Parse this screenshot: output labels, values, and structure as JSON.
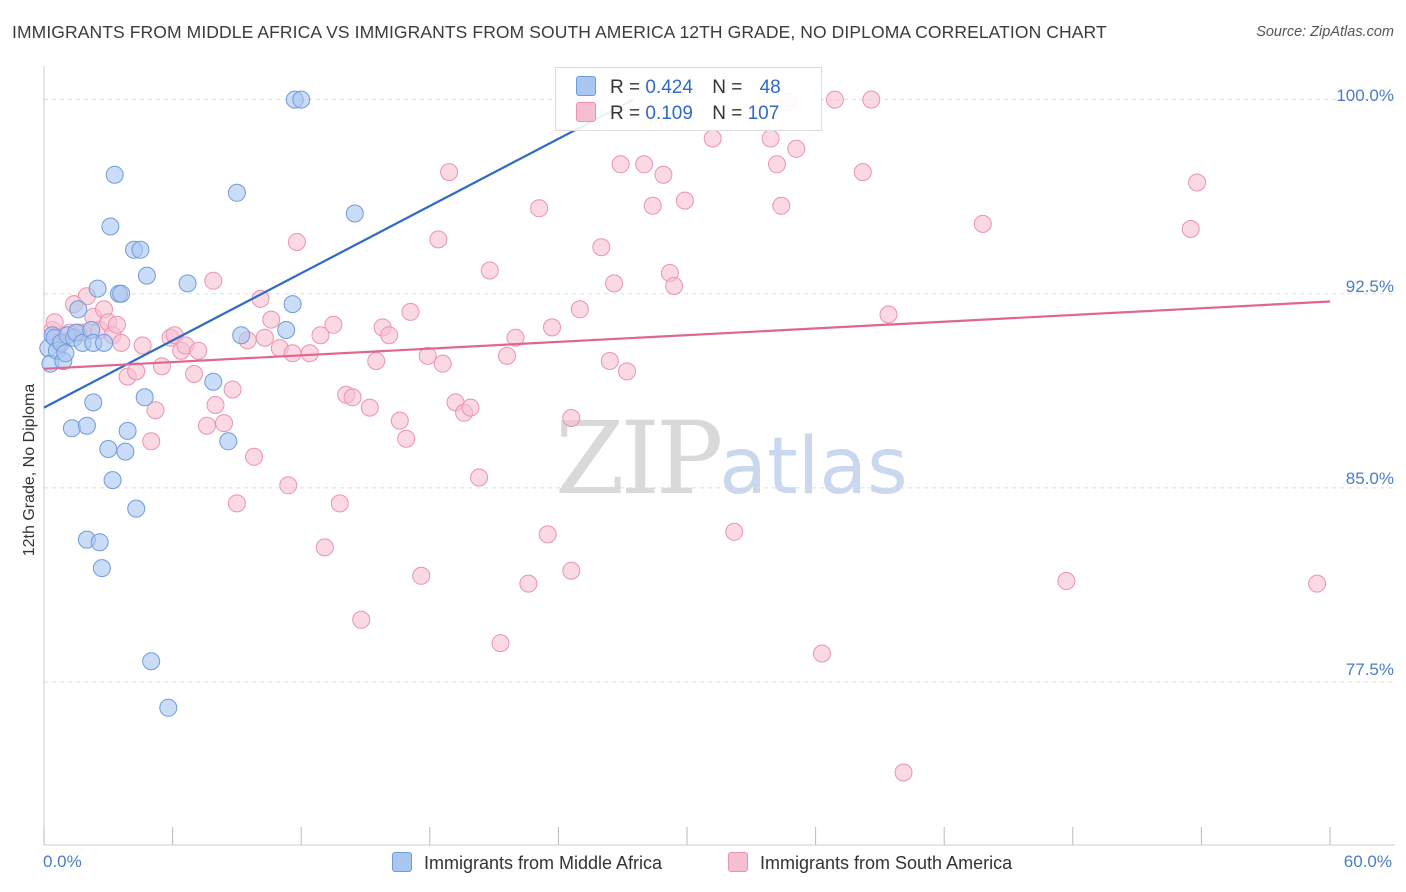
{
  "title": "IMMIGRANTS FROM MIDDLE AFRICA VS IMMIGRANTS FROM SOUTH AMERICA 12TH GRADE, NO DIPLOMA CORRELATION CHART",
  "source": "Source: ZipAtlas.com",
  "watermark": {
    "zip": "ZIP",
    "atlas": "atlas"
  },
  "legend": {
    "rows": [
      {
        "r_label": "R =",
        "r_value": "0.424",
        "n_label": "N =",
        "n_value": "48"
      },
      {
        "r_label": "R =",
        "r_value": "0.109",
        "n_label": "N =",
        "n_value": "107"
      }
    ]
  },
  "bottom_legend": [
    "Immigrants from Middle Africa",
    "Immigrants from South America"
  ],
  "colors": {
    "blue_fill": "#a9c6f0",
    "blue_stroke": "#6f9bdc",
    "blue_line": "#2f6ac6",
    "pink_fill": "#f6bfd1",
    "pink_stroke": "#eb93b1",
    "pink_line": "#e06593",
    "tick_text": "#4a7cc9",
    "grid": "#dddddd"
  },
  "chart_data": {
    "type": "scatter",
    "title": "IMMIGRANTS FROM MIDDLE AFRICA VS IMMIGRANTS FROM SOUTH AMERICA 12TH GRADE, NO DIPLOMA CORRELATION CHART",
    "xlabel": "",
    "ylabel": "12th Grade, No Diploma",
    "xlim": [
      0,
      60
    ],
    "ylim": [
      71.2,
      101.3
    ],
    "x_tick_labels": [
      "0.0%",
      "60.0%"
    ],
    "x_tick_values": [
      0,
      60
    ],
    "x_minor_ticks": [
      0,
      6,
      12,
      18,
      24,
      30,
      36,
      42,
      48,
      54,
      60
    ],
    "y_tick_labels": [
      "100.0%",
      "92.5%",
      "85.0%",
      "77.5%"
    ],
    "y_tick_values": [
      100.0,
      92.5,
      85.0,
      77.5
    ],
    "grid": true,
    "legend_position": "top-center",
    "series": [
      {
        "name": "Immigrants from Middle Africa",
        "color": "blue",
        "r": 0.424,
        "n": 48,
        "trend": {
          "x": [
            0,
            27.5
          ],
          "y": [
            88.1,
            100.0
          ]
        },
        "points": [
          [
            0.2,
            90.4
          ],
          [
            0.3,
            89.8
          ],
          [
            0.4,
            90.9
          ],
          [
            0.5,
            90.8
          ],
          [
            0.6,
            90.3
          ],
          [
            0.8,
            90.6
          ],
          [
            0.9,
            89.9
          ],
          [
            1.0,
            90.2
          ],
          [
            1.1,
            90.9
          ],
          [
            1.3,
            87.3
          ],
          [
            1.4,
            90.8
          ],
          [
            1.5,
            91.0
          ],
          [
            1.6,
            91.9
          ],
          [
            1.8,
            90.6
          ],
          [
            2.0,
            87.4
          ],
          [
            2.0,
            83.0
          ],
          [
            2.2,
            91.1
          ],
          [
            2.3,
            88.3
          ],
          [
            2.3,
            90.6
          ],
          [
            2.5,
            92.7
          ],
          [
            2.6,
            82.9
          ],
          [
            2.7,
            81.9
          ],
          [
            2.8,
            90.6
          ],
          [
            3.0,
            86.5
          ],
          [
            3.1,
            95.1
          ],
          [
            3.2,
            85.3
          ],
          [
            3.3,
            97.1
          ],
          [
            3.5,
            92.5
          ],
          [
            3.6,
            92.5
          ],
          [
            3.8,
            86.4
          ],
          [
            3.9,
            87.2
          ],
          [
            4.2,
            94.2
          ],
          [
            4.3,
            84.2
          ],
          [
            4.5,
            94.2
          ],
          [
            4.7,
            88.5
          ],
          [
            4.8,
            93.2
          ],
          [
            5.0,
            78.3
          ],
          [
            5.8,
            76.5
          ],
          [
            6.7,
            92.9
          ],
          [
            7.9,
            89.1
          ],
          [
            8.6,
            86.8
          ],
          [
            9.0,
            96.4
          ],
          [
            9.2,
            90.9
          ],
          [
            11.3,
            91.1
          ],
          [
            11.6,
            92.1
          ],
          [
            11.7,
            100.0
          ],
          [
            12.0,
            100.0
          ],
          [
            14.5,
            95.6
          ]
        ]
      },
      {
        "name": "Immigrants from South America",
        "color": "pink",
        "r": 0.109,
        "n": 107,
        "trend": {
          "x": [
            0,
            60
          ],
          "y": [
            89.6,
            92.2
          ]
        },
        "points": [
          [
            0.4,
            91.1
          ],
          [
            0.5,
            91.4
          ],
          [
            0.8,
            90.7
          ],
          [
            1.2,
            91.0
          ],
          [
            1.4,
            92.1
          ],
          [
            1.6,
            91.0
          ],
          [
            1.8,
            91.0
          ],
          [
            2.0,
            92.4
          ],
          [
            2.3,
            91.6
          ],
          [
            2.6,
            91.1
          ],
          [
            2.8,
            91.9
          ],
          [
            3.0,
            91.4
          ],
          [
            3.2,
            90.9
          ],
          [
            3.4,
            91.3
          ],
          [
            3.6,
            90.6
          ],
          [
            3.9,
            89.3
          ],
          [
            4.3,
            89.5
          ],
          [
            4.6,
            90.5
          ],
          [
            5.0,
            86.8
          ],
          [
            5.2,
            88.0
          ],
          [
            5.5,
            89.7
          ],
          [
            5.9,
            90.8
          ],
          [
            6.1,
            90.9
          ],
          [
            6.4,
            90.3
          ],
          [
            6.6,
            90.5
          ],
          [
            7.0,
            89.4
          ],
          [
            7.2,
            90.3
          ],
          [
            7.6,
            87.4
          ],
          [
            7.9,
            93.0
          ],
          [
            8.0,
            88.2
          ],
          [
            8.4,
            87.5
          ],
          [
            8.8,
            88.8
          ],
          [
            9.0,
            84.4
          ],
          [
            9.5,
            90.7
          ],
          [
            9.8,
            86.2
          ],
          [
            10.1,
            92.3
          ],
          [
            10.3,
            90.8
          ],
          [
            10.6,
            91.5
          ],
          [
            11.0,
            90.4
          ],
          [
            11.4,
            85.1
          ],
          [
            11.6,
            90.2
          ],
          [
            11.8,
            94.5
          ],
          [
            12.4,
            90.2
          ],
          [
            12.9,
            90.9
          ],
          [
            13.1,
            82.7
          ],
          [
            13.5,
            91.3
          ],
          [
            13.8,
            84.4
          ],
          [
            14.1,
            88.6
          ],
          [
            14.4,
            88.5
          ],
          [
            14.8,
            79.9
          ],
          [
            15.2,
            88.1
          ],
          [
            15.5,
            89.9
          ],
          [
            15.8,
            91.2
          ],
          [
            16.1,
            90.9
          ],
          [
            16.6,
            87.6
          ],
          [
            16.9,
            86.9
          ],
          [
            17.1,
            91.8
          ],
          [
            17.6,
            81.6
          ],
          [
            17.9,
            90.1
          ],
          [
            18.4,
            94.6
          ],
          [
            18.6,
            89.8
          ],
          [
            18.9,
            97.2
          ],
          [
            19.2,
            88.3
          ],
          [
            19.6,
            87.9
          ],
          [
            19.9,
            88.1
          ],
          [
            20.3,
            85.4
          ],
          [
            20.8,
            93.4
          ],
          [
            21.3,
            79.0
          ],
          [
            21.6,
            90.1
          ],
          [
            22.0,
            90.8
          ],
          [
            22.6,
            81.3
          ],
          [
            23.1,
            95.8
          ],
          [
            23.5,
            83.2
          ],
          [
            23.7,
            91.2
          ],
          [
            24.6,
            87.7
          ],
          [
            24.6,
            81.8
          ],
          [
            25.0,
            91.9
          ],
          [
            25.4,
            100.0
          ],
          [
            26.0,
            94.3
          ],
          [
            26.4,
            89.9
          ],
          [
            26.6,
            92.9
          ],
          [
            26.9,
            97.5
          ],
          [
            27.2,
            89.5
          ],
          [
            28.0,
            97.5
          ],
          [
            28.4,
            95.9
          ],
          [
            28.9,
            97.1
          ],
          [
            29.2,
            93.3
          ],
          [
            29.4,
            92.8
          ],
          [
            29.9,
            96.1
          ],
          [
            31.2,
            98.5
          ],
          [
            32.2,
            83.3
          ],
          [
            33.9,
            98.5
          ],
          [
            34.2,
            97.5
          ],
          [
            34.4,
            95.9
          ],
          [
            34.7,
            99.9
          ],
          [
            35.1,
            98.1
          ],
          [
            36.3,
            78.6
          ],
          [
            36.9,
            100.0
          ],
          [
            38.2,
            97.2
          ],
          [
            38.6,
            100.0
          ],
          [
            39.4,
            91.7
          ],
          [
            40.1,
            74.0
          ],
          [
            43.8,
            95.2
          ],
          [
            47.7,
            81.4
          ],
          [
            53.5,
            95.0
          ],
          [
            53.8,
            96.8
          ],
          [
            59.4,
            81.3
          ]
        ]
      }
    ]
  }
}
